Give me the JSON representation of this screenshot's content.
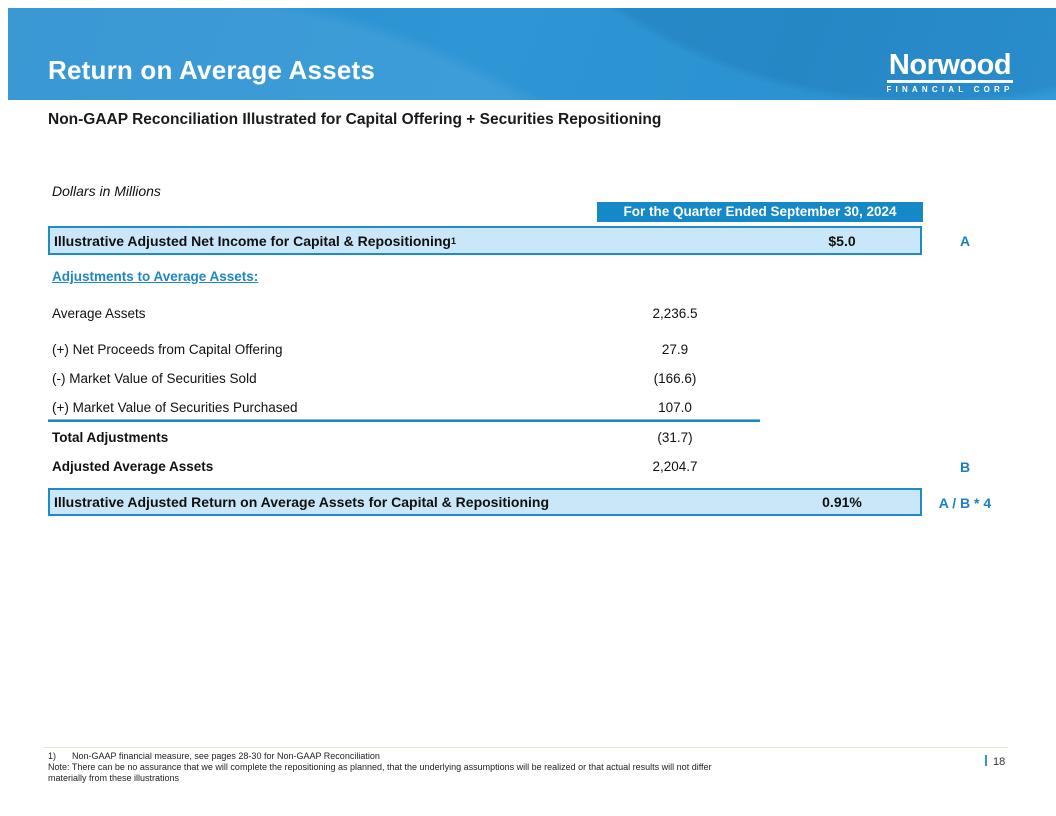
{
  "header": {
    "title": "Return on Average Assets",
    "logo": {
      "name": "Norwood",
      "subtext": "FINANCIAL CORP"
    }
  },
  "subtitle": "Non-GAAP Reconciliation Illustrated for Capital Offering + Securities Repositioning",
  "table": {
    "units_label": "Dollars in Millions",
    "column_header": "For the Quarter Ended September 30, 2024",
    "top_row": {
      "label": "Illustrative Adjusted Net Income for Capital & Repositioning",
      "superscript": "1",
      "value": "$5.0",
      "ref": "A"
    },
    "section_header": "Adjustments to Average Assets:",
    "rows": [
      {
        "label": "Average Assets",
        "value": "2,236.5"
      },
      {
        "label": "(+) Net Proceeds from Capital Offering",
        "value": "27.9"
      },
      {
        "label": "(-) Market Value of Securities Sold",
        "value": "(166.6)"
      },
      {
        "label": "(+) Market Value of Securities Purchased",
        "value": "107.0"
      }
    ],
    "total_rows": [
      {
        "label": "Total Adjustments",
        "value": "(31.7)",
        "ref": ""
      },
      {
        "label": "Adjusted Average Assets",
        "value": "2,204.7",
        "ref": "B"
      }
    ],
    "bottom_row": {
      "label": "Illustrative Adjusted Return on Average Assets for Capital & Repositioning",
      "value": "0.91%",
      "ref": "A / B * 4"
    }
  },
  "footer": {
    "footnote_marker": "1)",
    "footnote_text": "Non-GAAP financial measure, see pages 28-30 for Non-GAAP Reconciliation",
    "note_line1": "Note: There can be no assurance that we will complete the repositioning as planned, that the underlying assumptions will be realized or that actual results will not differ",
    "note_line2": "materially from these illustrations",
    "page_number": "18"
  },
  "colors": {
    "header_blue": "#2E96D5",
    "banner_blue": "#1588C8",
    "highlight_fill": "#C9E7F8",
    "highlight_border": "#1E8BC3",
    "accent_blue": "#1B7FC4",
    "footer_rule": "#EDE2C3"
  }
}
